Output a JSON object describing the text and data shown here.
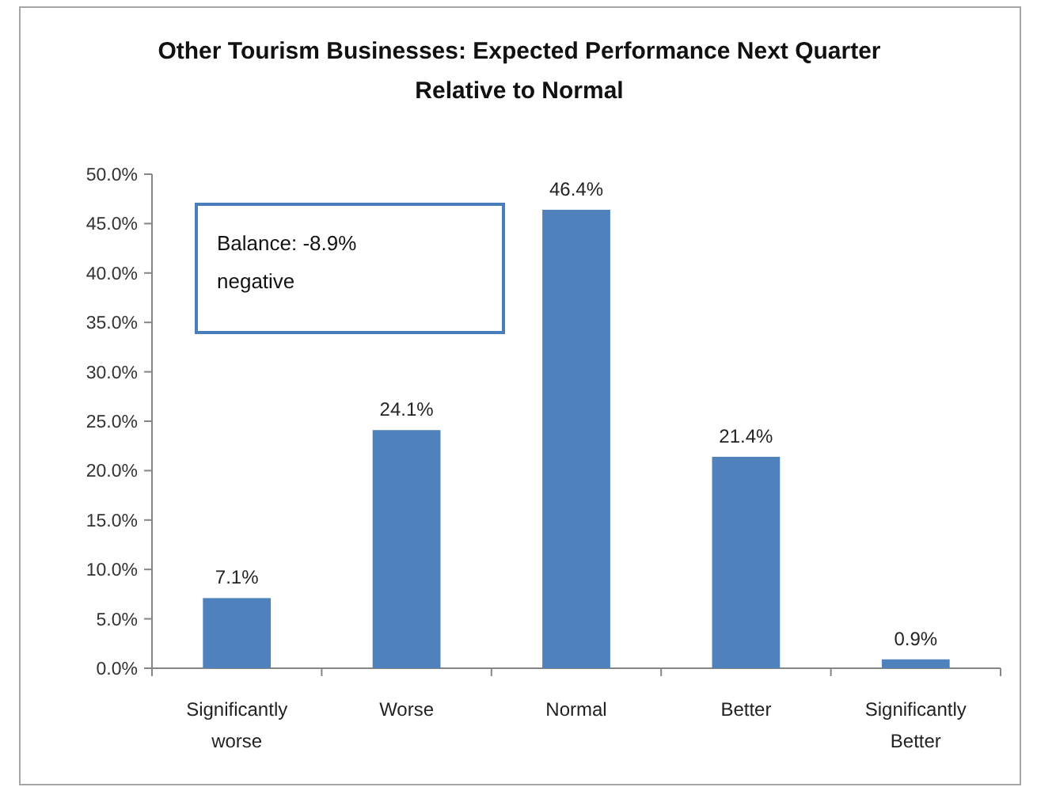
{
  "chart_data": {
    "type": "bar",
    "title": "Other Tourism Businesses: Expected Performance Next Quarter Relative to Normal",
    "categories": [
      "Significantly worse",
      "Worse",
      "Normal",
      "Better",
      "Significantly Better"
    ],
    "values": [
      7.1,
      24.1,
      46.4,
      21.4,
      0.9
    ],
    "value_labels": [
      "7.1%",
      "24.1%",
      "46.4%",
      "21.4%",
      "0.9%"
    ],
    "color": "#4f81bd",
    "ylim": [
      0,
      50
    ],
    "yticks": [
      {
        "value": 0,
        "label": "0.0%"
      },
      {
        "value": 5,
        "label": "5.0%"
      },
      {
        "value": 10,
        "label": "10.0%"
      },
      {
        "value": 15,
        "label": "15.0%"
      },
      {
        "value": 20,
        "label": "20.0%"
      },
      {
        "value": 25,
        "label": "25.0%"
      },
      {
        "value": 30,
        "label": "30.0%"
      },
      {
        "value": 35,
        "label": "35.0%"
      },
      {
        "value": 40,
        "label": "40.0%"
      },
      {
        "value": 45,
        "label": "45.0%"
      },
      {
        "value": 50,
        "label": "50.0%"
      }
    ],
    "annotations": [
      "Balance: -8.9% negative"
    ]
  }
}
